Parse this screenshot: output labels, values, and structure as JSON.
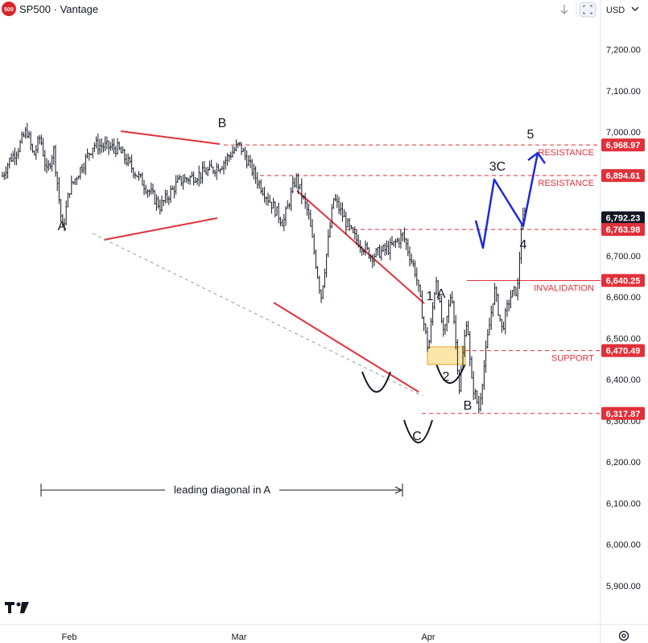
{
  "header": {
    "symbol_badge": "500",
    "title": "SP500 · Vantage",
    "currency": "USD"
  },
  "colors": {
    "level": "#e0313a",
    "projection": "#1e2bd6",
    "current_price_tag": "#131722",
    "support_box_fill": "#fbe7a9",
    "support_box_stroke": "#e6a52a",
    "bars": "#131722"
  },
  "icons": [
    "down-arrow-icon",
    "screenshot-icon",
    "tradingview-logo-icon",
    "settings-icon"
  ],
  "chart_data": {
    "type": "line",
    "title": "",
    "ylim": [
      5830,
      7300
    ],
    "yticks": [
      5900,
      6000,
      6100,
      6200,
      6300,
      6400,
      6500,
      6600,
      6700,
      6800,
      6900,
      7000,
      7100,
      7200
    ],
    "ytick_labels": [
      "5,900.00",
      "6,000.00",
      "6,100.00",
      "6,200.00",
      "6,300.00",
      "6,400.00",
      "6,500.00",
      "6,600.00",
      "6,700.00",
      "6,800.00",
      "6,900.00",
      "7,000.00",
      "7,100.00",
      "7,200.00"
    ],
    "x_tick_labels": [
      {
        "label": "Feb",
        "date": "2026-02-02"
      },
      {
        "label": "Mar",
        "date": "2026-03-02"
      },
      {
        "label": "Apr",
        "date": "2026-04-01"
      }
    ],
    "x_range": [
      "2026-01-02",
      "2026-04-30"
    ],
    "price_path": [
      {
        "date": "2026-01-02",
        "price": 6880
      },
      {
        "date": "2026-01-06",
        "price": 6930
      },
      {
        "date": "2026-01-10",
        "price": 6960
      },
      {
        "date": "2026-01-14",
        "price": 7005
      },
      {
        "date": "2026-01-17",
        "price": 6940
      },
      {
        "date": "2026-01-20",
        "price": 6990
      },
      {
        "date": "2026-01-23",
        "price": 6900
      },
      {
        "date": "2026-01-26",
        "price": 6960
      },
      {
        "date": "2026-01-30",
        "price": 6760
      },
      {
        "date": "2026-02-02",
        "price": 6860
      },
      {
        "date": "2026-02-06",
        "price": 6970
      },
      {
        "date": "2026-02-10",
        "price": 6960
      },
      {
        "date": "2026-02-14",
        "price": 6880
      },
      {
        "date": "2026-02-17",
        "price": 6820
      },
      {
        "date": "2026-02-20",
        "price": 6880
      },
      {
        "date": "2026-02-24",
        "price": 6900
      },
      {
        "date": "2026-02-27",
        "price": 6920
      },
      {
        "date": "2026-03-02",
        "price": 6970
      },
      {
        "date": "2026-03-05",
        "price": 6880
      },
      {
        "date": "2026-03-09",
        "price": 6780
      },
      {
        "date": "2026-03-11",
        "price": 6890
      },
      {
        "date": "2026-03-13",
        "price": 6800
      },
      {
        "date": "2026-03-15",
        "price": 6600
      },
      {
        "date": "2026-03-17",
        "price": 6840
      },
      {
        "date": "2026-03-20",
        "price": 6750
      },
      {
        "date": "2026-03-23",
        "price": 6700
      },
      {
        "date": "2026-03-26",
        "price": 6720
      },
      {
        "date": "2026-03-28",
        "price": 6750
      },
      {
        "date": "2026-03-30",
        "price": 6660
      },
      {
        "date": "2026-04-01",
        "price": 6470
      },
      {
        "date": "2026-04-03",
        "price": 6650
      },
      {
        "date": "2026-04-05",
        "price": 6500
      },
      {
        "date": "2026-04-07",
        "price": 6620
      },
      {
        "date": "2026-04-09",
        "price": 6380
      },
      {
        "date": "2026-04-11",
        "price": 6560
      },
      {
        "date": "2026-04-12",
        "price": 6400
      },
      {
        "date": "2026-04-14",
        "price": 6330
      },
      {
        "date": "2026-04-16",
        "price": 6480
      },
      {
        "date": "2026-04-18",
        "price": 6620
      },
      {
        "date": "2026-04-20",
        "price": 6520
      },
      {
        "date": "2026-04-22",
        "price": 6600
      },
      {
        "date": "2026-04-24",
        "price": 6620
      },
      {
        "date": "2026-04-25",
        "price": 6780
      },
      {
        "date": "2026-04-26",
        "price": 6800
      }
    ],
    "levels": [
      {
        "price": 6968.97,
        "label": "6,968.97",
        "note": "RESISTANCE",
        "style": "dashed",
        "color": "#e0313a"
      },
      {
        "price": 6894.61,
        "label": "6,894.61",
        "note": "RESISTANCE",
        "style": "dashed",
        "color": "#e0313a"
      },
      {
        "price": 6792.23,
        "label": "6,792.23",
        "note": "",
        "style": "none",
        "color": "#131722"
      },
      {
        "price": 6763.98,
        "label": "6,763.98",
        "note": "",
        "style": "dashed",
        "color": "#e0313a"
      },
      {
        "price": 6640.25,
        "label": "6,640.25",
        "note": "INVALIDATION",
        "style": "solid",
        "color": "#e0313a"
      },
      {
        "price": 6470.49,
        "label": "6,470.49",
        "note": "SUPPORT",
        "style": "dashed",
        "color": "#e0313a"
      },
      {
        "price": 6317.87,
        "label": "6,317.87",
        "note": "",
        "style": "dashed",
        "color": "#e0313a"
      }
    ],
    "wave_labels": [
      "A",
      "B",
      "C",
      "1",
      "A",
      "2",
      "B",
      "3C",
      "4",
      "5"
    ],
    "annotation": "leading diagonal in A",
    "projection_path": [
      {
        "date": "2026-04-27",
        "price": 6790
      },
      {
        "date": "2026-04-28",
        "price": 6720
      },
      {
        "date": "2026-04-29",
        "price": 6880
      },
      {
        "date": "2026-04-30",
        "price": 6790
      },
      {
        "date": "2026-04-30",
        "price": 6960
      }
    ]
  }
}
